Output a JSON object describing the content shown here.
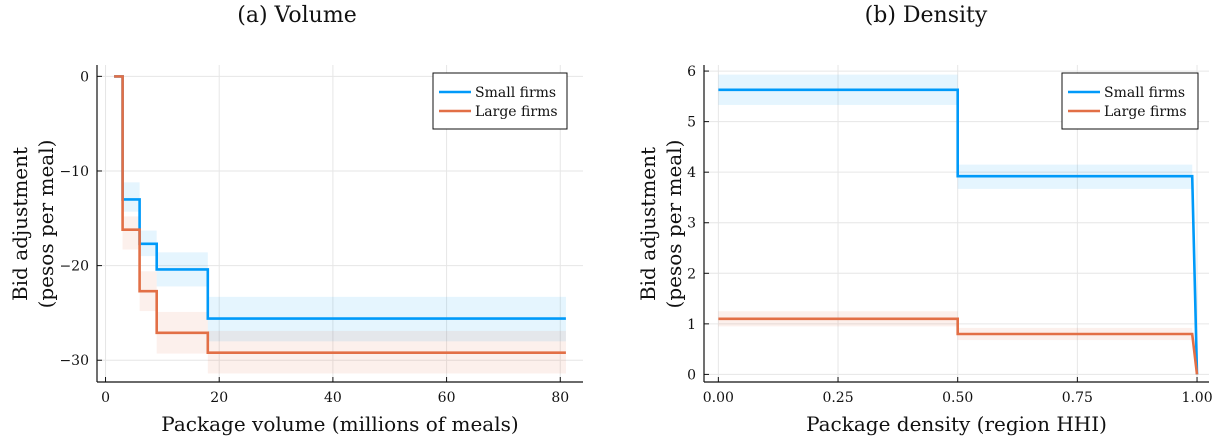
{
  "chart_data": [
    {
      "type": "line",
      "title": "(a) Volume",
      "xlabel": "Package volume (millions of meals)",
      "ylabel_line1": "Bid adjustment",
      "ylabel_line2": "(pesos per meal)",
      "xlim": [
        -1.5,
        84
      ],
      "ylim": [
        -32.3,
        1.2
      ],
      "xticks": [
        0,
        20,
        40,
        60,
        80
      ],
      "xtick_labels": [
        "0",
        "20",
        "40",
        "60",
        "80"
      ],
      "yticks": [
        0,
        -10,
        -20,
        -30
      ],
      "ytick_labels": [
        "0",
        "−10",
        "−20",
        "−30"
      ],
      "grid": true,
      "legend_position": "top-right",
      "series": [
        {
          "name": "Small firms",
          "color": "#009AF9",
          "x": [
            1.5,
            3.0,
            3.0,
            6.0,
            6.0,
            9.0,
            9.0,
            18.0,
            18.0,
            81.0
          ],
          "y": [
            0,
            0,
            -13.0,
            -13.0,
            -17.7,
            -17.7,
            -20.4,
            -20.4,
            -25.6,
            -25.6
          ],
          "band": [
            {
              "x0": 3.0,
              "x1": 6.0,
              "lo": -14.3,
              "hi": -11.2
            },
            {
              "x0": 6.0,
              "x1": 9.0,
              "lo": -19.0,
              "hi": -16.3
            },
            {
              "x0": 9.0,
              "x1": 18.0,
              "lo": -22.2,
              "hi": -18.6
            },
            {
              "x0": 18.0,
              "x1": 81.0,
              "lo": -28.0,
              "hi": -23.3
            }
          ]
        },
        {
          "name": "Large firms",
          "color": "#E26F46",
          "x": [
            1.5,
            3.0,
            3.0,
            6.0,
            6.0,
            9.0,
            9.0,
            18.0,
            18.0,
            81.0
          ],
          "y": [
            0,
            0,
            -16.2,
            -16.2,
            -22.7,
            -22.7,
            -27.1,
            -27.1,
            -29.2,
            -29.2
          ],
          "band": [
            {
              "x0": 3.0,
              "x1": 6.0,
              "lo": -18.3,
              "hi": -14.8
            },
            {
              "x0": 6.0,
              "x1": 9.0,
              "lo": -24.8,
              "hi": -20.6
            },
            {
              "x0": 9.0,
              "x1": 18.0,
              "lo": -29.3,
              "hi": -24.9
            },
            {
              "x0": 18.0,
              "x1": 81.0,
              "lo": -31.4,
              "hi": -26.9
            }
          ]
        }
      ]
    },
    {
      "type": "line",
      "title": "(b) Density",
      "xlabel": "Package density (region HHI)",
      "ylabel_line1": "Bid adjustment",
      "ylabel_line2": "(pesos per meal)",
      "xlim": [
        -0.03,
        1.025
      ],
      "ylim": [
        -0.15,
        6.12
      ],
      "xticks": [
        0,
        0.25,
        0.5,
        0.75,
        1.0
      ],
      "xtick_labels": [
        "0.00",
        "0.25",
        "0.50",
        "0.75",
        "1.00"
      ],
      "yticks": [
        0,
        1,
        2,
        3,
        4,
        5,
        6
      ],
      "ytick_labels": [
        "0",
        "1",
        "2",
        "3",
        "4",
        "5",
        "6"
      ],
      "grid": true,
      "legend_position": "top-right",
      "series": [
        {
          "name": "Small firms",
          "color": "#009AF9",
          "x": [
            0.0,
            0.5,
            0.5,
            0.99,
            1.0
          ],
          "y": [
            5.63,
            5.63,
            3.92,
            3.92,
            0.0
          ],
          "band": [
            {
              "x0": 0.0,
              "x1": 0.5,
              "lo": 5.33,
              "hi": 5.93
            },
            {
              "x0": 0.5,
              "x1": 0.99,
              "lo": 3.67,
              "hi": 4.15
            }
          ]
        },
        {
          "name": "Large firms",
          "color": "#E26F46",
          "x": [
            0.0,
            0.5,
            0.5,
            0.99,
            1.0
          ],
          "y": [
            1.1,
            1.1,
            0.8,
            0.8,
            0.0
          ],
          "band": [
            {
              "x0": 0.0,
              "x1": 0.5,
              "lo": 0.95,
              "hi": 1.25
            },
            {
              "x0": 0.5,
              "x1": 0.99,
              "lo": 0.68,
              "hi": 0.92
            }
          ]
        }
      ]
    }
  ]
}
